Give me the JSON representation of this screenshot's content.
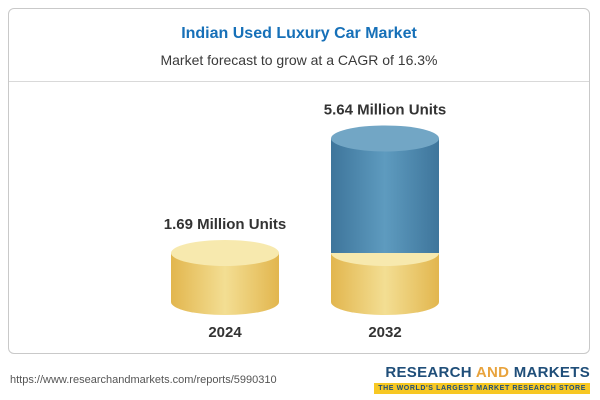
{
  "card": {
    "title": "Indian Used Luxury Car Market",
    "subtitle": "Market forecast to grow at a CAGR of 16.3%"
  },
  "chart_data": {
    "type": "bar",
    "variant": "3d-cylinder",
    "title": "Indian Used Luxury Car Market",
    "subtitle": "Market forecast to grow at a CAGR of 16.3%",
    "unit": "Million Units",
    "categories": [
      "2024",
      "2032"
    ],
    "values": [
      1.69,
      5.64
    ],
    "value_labels": [
      "1.69 Million Units",
      "5.64 Million Units"
    ],
    "cagr_percent": 16.3,
    "legend_position": "none",
    "grid": false,
    "ylim": [
      0,
      6
    ],
    "bars": [
      {
        "category": "2024",
        "total": 1.69,
        "label": "1.69 Million Units",
        "segments": [
          {
            "color": "gold",
            "value": 1.69
          }
        ]
      },
      {
        "category": "2032",
        "total": 5.64,
        "label": "5.64 Million Units",
        "segments": [
          {
            "color": "gold",
            "value": 1.69
          },
          {
            "color": "blue",
            "value": 3.95
          }
        ]
      }
    ],
    "palette": {
      "gold": {
        "dark": "#E2B64E",
        "mid": "#F3DE93",
        "light": "#F7E9AE"
      },
      "blue": {
        "dark": "#3E759B",
        "mid": "#5E9BBF",
        "light": "#72A6C5"
      }
    }
  },
  "colors": {
    "title_accent": "#1670B8",
    "label_text": "#333333",
    "logo_blue": "#1F4E79",
    "logo_orange": "#E8A33D",
    "logo_yellow_bar": "#F7C823"
  },
  "footer": {
    "url": "https://www.researchandmarkets.com/reports/5990310",
    "logo": {
      "word1": "RESEARCH",
      "word2": "AND",
      "word3": "MARKETS",
      "tagline": "THE WORLD'S LARGEST MARKET RESEARCH STORE"
    }
  }
}
